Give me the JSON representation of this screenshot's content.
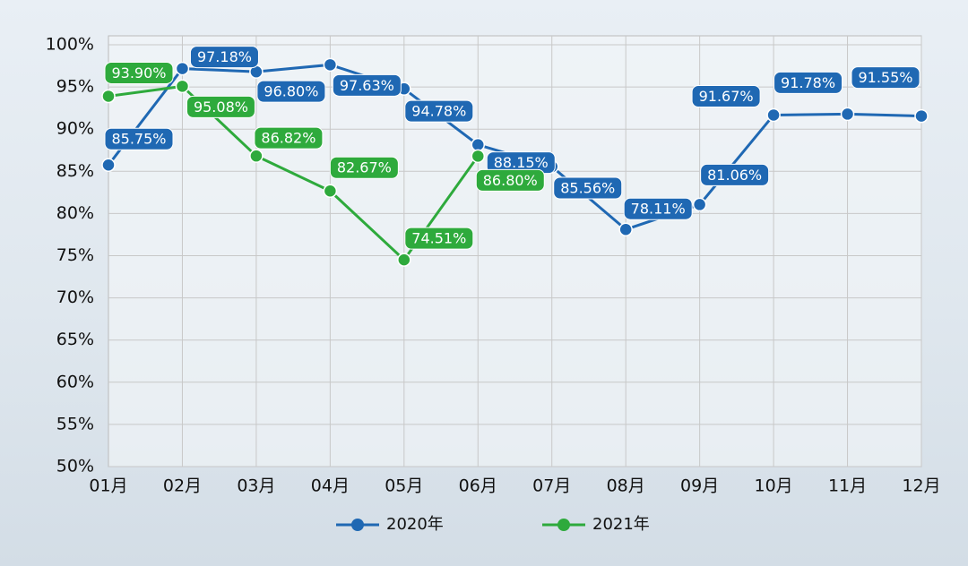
{
  "chart_data": {
    "type": "line",
    "categories": [
      "01月",
      "02月",
      "03月",
      "04月",
      "05月",
      "06月",
      "07月",
      "08月",
      "09月",
      "10月",
      "11月",
      "12月"
    ],
    "series": [
      {
        "name": "2020年",
        "color": "#1f68b3",
        "values": [
          85.75,
          97.18,
          96.8,
          97.63,
          94.78,
          88.15,
          85.56,
          78.11,
          81.06,
          91.67,
          91.78,
          91.55
        ],
        "value_labels": [
          "85.75%",
          "97.18%",
          "96.80%",
          "97.63%",
          "94.78%",
          "88.15%",
          "85.56%",
          "78.11%",
          "81.06%",
          "91.67%",
          "91.78%",
          "91.55%"
        ]
      },
      {
        "name": "2021年",
        "color": "#2eaa3c",
        "values": [
          93.9,
          95.08,
          86.82,
          82.67,
          74.51,
          86.8,
          null,
          null,
          null,
          null,
          null,
          null
        ],
        "value_labels": [
          "93.90%",
          "95.08%",
          "86.82%",
          "82.67%",
          "74.51%",
          "86.80%",
          null,
          null,
          null,
          null,
          null,
          null
        ]
      }
    ],
    "ylim": [
      50,
      100
    ],
    "yticks": [
      {
        "value": 50,
        "label": "50%"
      },
      {
        "value": 55,
        "label": "55%"
      },
      {
        "value": 60,
        "label": "60%"
      },
      {
        "value": 65,
        "label": "65%"
      },
      {
        "value": 70,
        "label": "70%"
      },
      {
        "value": 75,
        "label": "75%"
      },
      {
        "value": 80,
        "label": "80%"
      },
      {
        "value": 85,
        "label": "85%"
      },
      {
        "value": 90,
        "label": "90%"
      },
      {
        "value": 95,
        "label": "95%"
      },
      {
        "value": 100,
        "label": "100%"
      }
    ],
    "grid": true
  }
}
